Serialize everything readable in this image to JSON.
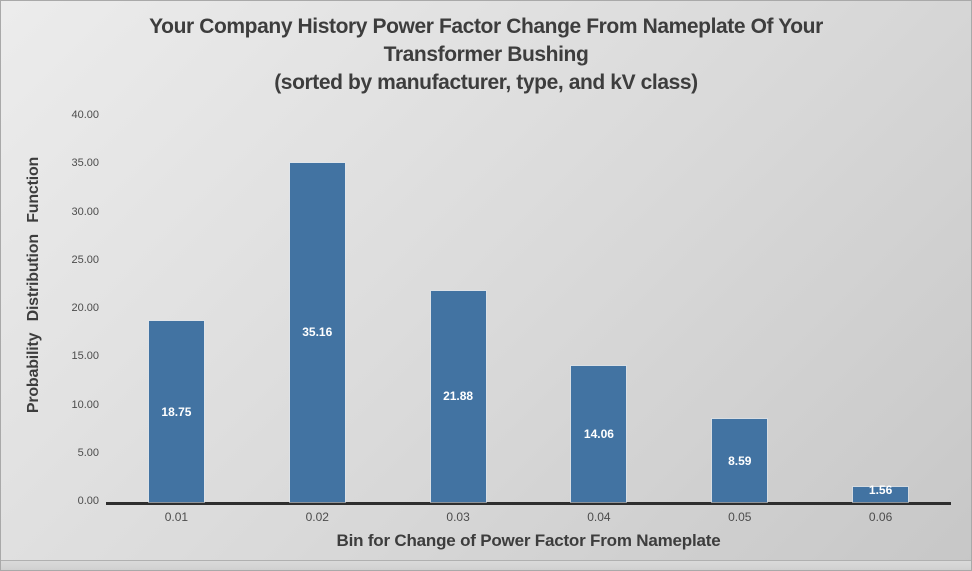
{
  "chart_data": {
    "type": "bar",
    "title_lines": [
      "Your Company History Power Factor Change From Nameplate Of Your",
      "Transformer Bushing",
      "(sorted by manufacturer, type, and kV class)"
    ],
    "xlabel": "Bin for Change of Power Factor From Nameplate",
    "ylabel": "Probability  Distribution  Function",
    "categories": [
      "0.01",
      "0.02",
      "0.03",
      "0.04",
      "0.05",
      "0.06"
    ],
    "values": [
      18.75,
      35.16,
      21.88,
      14.06,
      8.59,
      1.56
    ],
    "value_labels": [
      "18.75",
      "35.16",
      "21.88",
      "14.06",
      "8.59",
      "1.56"
    ],
    "ylim": [
      0,
      40
    ],
    "ytick_step": 5,
    "yticks": [
      "0.00",
      "5.00",
      "10.00",
      "15.00",
      "20.00",
      "25.00",
      "30.00",
      "35.00",
      "40.00"
    ],
    "grid": false,
    "legend": "none",
    "colors": {
      "bar": "#4273a2",
      "bar_value_label": "#ffffff",
      "axis_line": "#2e2e2e",
      "title_text": "#3d3d3d",
      "tick_text": "#4c4c4c",
      "background_light": "#ececec",
      "background_dark": "#c7c7c7"
    }
  }
}
